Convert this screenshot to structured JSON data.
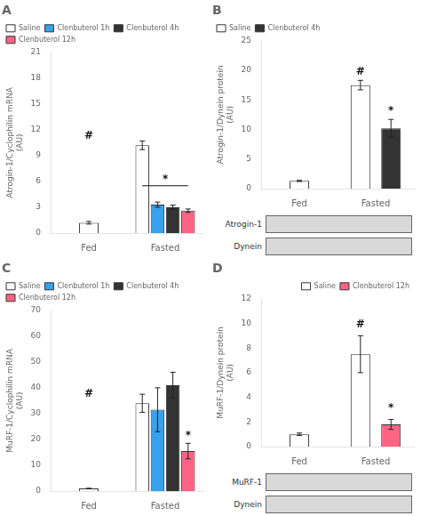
{
  "chart_data": [
    {
      "type": "bar",
      "title": "A",
      "ylabel": "Atrogin-1/Cyclophilin mRNA\n(AU)",
      "categories": [
        "Fed",
        "Fasted"
      ],
      "series": [
        {
          "color": "#ffffff",
          "values": [
            1.2,
            null
          ],
          "errors": [
            0.15,
            null
          ]
        },
        {
          "name": "Saline",
          "color": "#ffffff",
          "values": [
            null,
            10.2
          ],
          "errors": [
            null,
            0.5
          ]
        },
        {
          "name": "Clenbuterol 1h",
          "color": "#36a2eb",
          "values": [
            null,
            3.3
          ],
          "errors": [
            null,
            0.3
          ]
        },
        {
          "name": "Clenbuterol 4h",
          "color": "#333333",
          "values": [
            null,
            3.0
          ],
          "errors": [
            null,
            0.25
          ]
        },
        {
          "name": "Clenbuterol 12h",
          "color": "#ff6384",
          "values": [
            null,
            2.6
          ],
          "errors": [
            null,
            0.2
          ]
        }
      ],
      "ylim": [
        0,
        21
      ],
      "yticks": [
        0,
        3,
        6,
        9,
        12,
        15,
        18,
        21
      ],
      "grid": false,
      "legend": "upper left",
      "annotations": [
        {
          "text": "#",
          "category": "Fed",
          "y": 10.7
        },
        {
          "text": "*",
          "category": "Fasted",
          "from": "Saline",
          "to": "Clenbuterol 12h",
          "y": 5.5
        }
      ]
    },
    {
      "type": "bar",
      "title": "B",
      "ylabel": "Atrogin-1/Dynein protein\n(AU)",
      "categories": [
        "Fed",
        "Fasted"
      ],
      "series": [
        {
          "color": "#ffffff",
          "values": [
            1.3,
            null
          ],
          "errors": [
            0.1,
            null
          ]
        },
        {
          "name": "Saline",
          "color": "#ffffff",
          "values": [
            null,
            17.5
          ],
          "errors": [
            null,
            0.8
          ]
        },
        {
          "name": "Clenbuterol 4h",
          "color": "#333333",
          "values": [
            null,
            10.2
          ],
          "errors": [
            null,
            1.5
          ]
        }
      ],
      "ylim": [
        0,
        25
      ],
      "yticks": [
        0,
        5,
        10,
        15,
        20,
        25
      ],
      "grid": false,
      "legend": "upper left",
      "annotations": [
        {
          "text": "#",
          "category": "Fasted",
          "series": "Saline",
          "y": 18.8
        },
        {
          "text": "*",
          "category": "Fasted",
          "series": "Clenbuterol 4h",
          "y": 12.2
        }
      ],
      "blots": [
        "Atrogin-1",
        "Dynein"
      ]
    },
    {
      "type": "bar",
      "title": "C",
      "ylabel": "MuRF-1/Cyclophilin mRNA\n(AU)",
      "categories": [
        "Fed",
        "Fasted"
      ],
      "series": [
        {
          "color": "#ffffff",
          "values": [
            1.0,
            null
          ],
          "errors": [
            0.1,
            null
          ]
        },
        {
          "name": "Saline",
          "color": "#ffffff",
          "values": [
            null,
            34.0
          ],
          "errors": [
            null,
            3.5
          ]
        },
        {
          "name": "Clenbuterol 1h",
          "color": "#36a2eb",
          "values": [
            null,
            31.5
          ],
          "errors": [
            null,
            8.5
          ]
        },
        {
          "name": "Clenbuterol 4h",
          "color": "#333333",
          "values": [
            null,
            41.0
          ],
          "errors": [
            null,
            5.0
          ]
        },
        {
          "name": "Clenbuterol 12h",
          "color": "#ff6384",
          "values": [
            null,
            15.5
          ],
          "errors": [
            null,
            3.0
          ]
        }
      ],
      "ylim": [
        0,
        70
      ],
      "yticks": [
        0,
        10,
        20,
        30,
        40,
        50,
        60,
        70
      ],
      "grid": false,
      "legend": "upper left",
      "annotations": [
        {
          "text": "#",
          "category": "Fed",
          "y": 35.5
        },
        {
          "text": "*",
          "category": "Fasted",
          "series": "Clenbuterol 12h",
          "y": 19.5
        }
      ]
    },
    {
      "type": "bar",
      "title": "D",
      "ylabel": "MuRF-1/Dynein protein\n(AU)",
      "categories": [
        "Fed",
        "Fasted"
      ],
      "series": [
        {
          "color": "#ffffff",
          "values": [
            1.0,
            null
          ],
          "errors": [
            0.1,
            null
          ]
        },
        {
          "name": "Saline",
          "color": "#ffffff",
          "values": [
            null,
            7.5
          ],
          "errors": [
            null,
            1.5
          ]
        },
        {
          "name": "Clenbuterol 12h",
          "color": "#ff6384",
          "values": [
            null,
            1.8
          ],
          "errors": [
            null,
            0.4
          ]
        }
      ],
      "ylim": [
        0,
        12
      ],
      "yticks": [
        0,
        2,
        4,
        6,
        8,
        10,
        12
      ],
      "grid": false,
      "legend": "upper right",
      "annotations": [
        {
          "text": "#",
          "category": "Fasted",
          "series": "Saline",
          "y": 9.5
        },
        {
          "text": "*",
          "category": "Fasted",
          "series": "Clenbuterol 12h",
          "y": 2.7
        }
      ],
      "blots": [
        "MuRF-1",
        "Dynein"
      ]
    }
  ]
}
